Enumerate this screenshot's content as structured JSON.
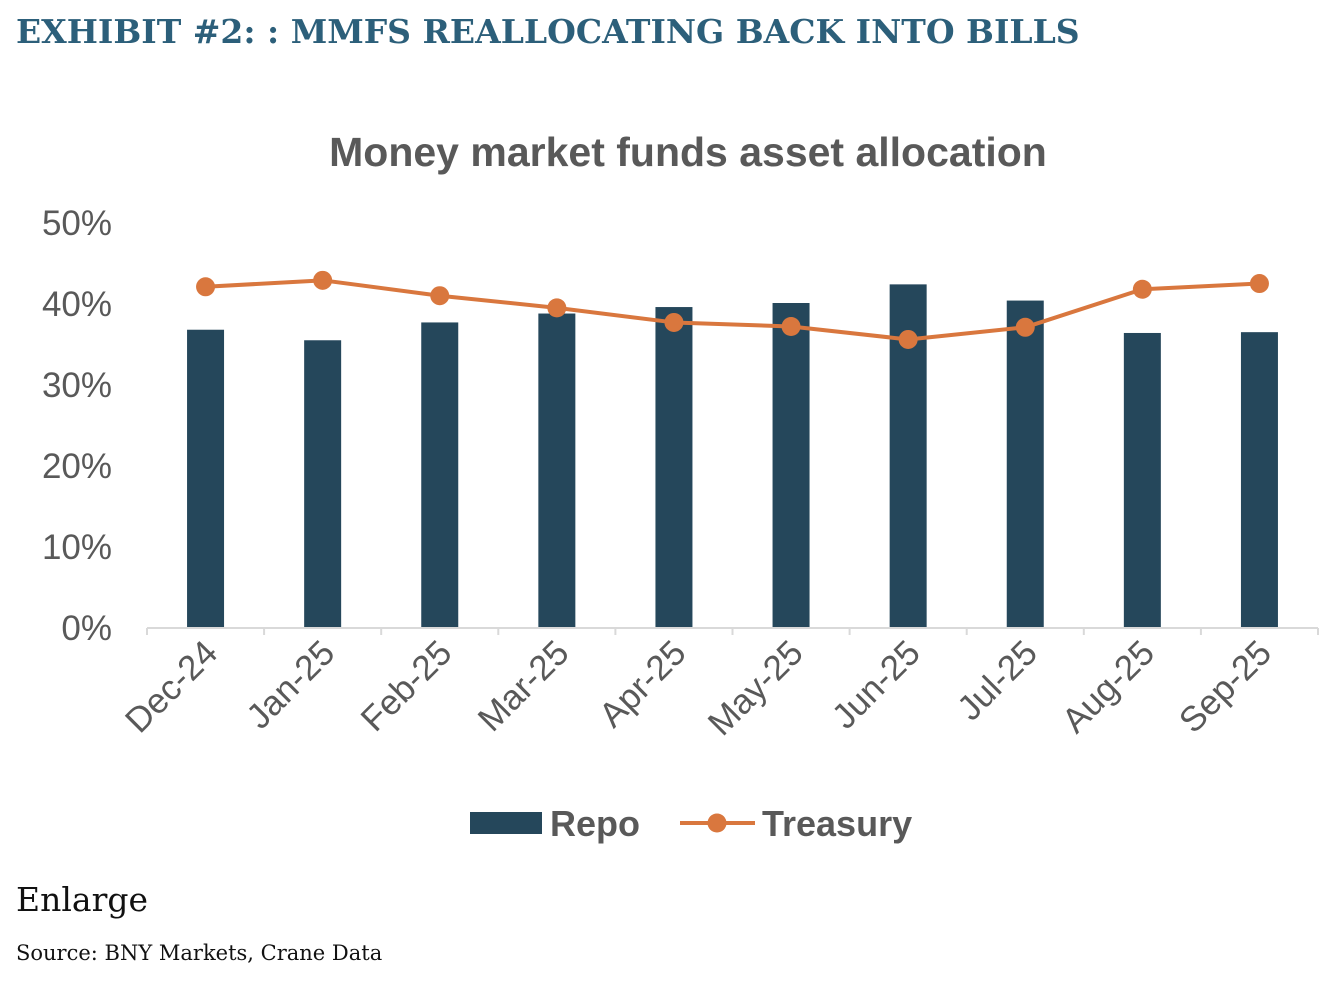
{
  "exhibit": {
    "title": "EXHIBIT #2: : MMFS REALLOCATING BACK INTO BILLS"
  },
  "chart_data": {
    "type": "bar",
    "title": "Money market funds asset allocation",
    "xlabel": "",
    "ylabel": "",
    "ylim": [
      0,
      50
    ],
    "yticks": [
      "0%",
      "10%",
      "20%",
      "30%",
      "40%",
      "50%"
    ],
    "ytick_values": [
      0,
      10,
      20,
      30,
      40,
      50
    ],
    "categories": [
      "Dec-24",
      "Jan-25",
      "Feb-25",
      "Mar-25",
      "Apr-25",
      "May-25",
      "Jun-25",
      "Jul-25",
      "Aug-25",
      "Sep-25"
    ],
    "series": [
      {
        "name": "Repo",
        "kind": "bar",
        "color": "#25475b",
        "values": [
          36.7,
          35.4,
          37.6,
          38.7,
          39.5,
          40.0,
          42.3,
          40.3,
          36.3,
          36.4
        ]
      },
      {
        "name": "Treasury",
        "kind": "line",
        "color": "#d9773e",
        "values": [
          42.0,
          42.8,
          40.9,
          39.4,
          37.6,
          37.1,
          35.5,
          37.0,
          41.7,
          42.4
        ]
      }
    ],
    "grid": false,
    "legend": "bottom-center"
  },
  "enlarge": {
    "label": "Enlarge"
  },
  "source": {
    "text": "Source: BNY Markets, Crane Data"
  }
}
